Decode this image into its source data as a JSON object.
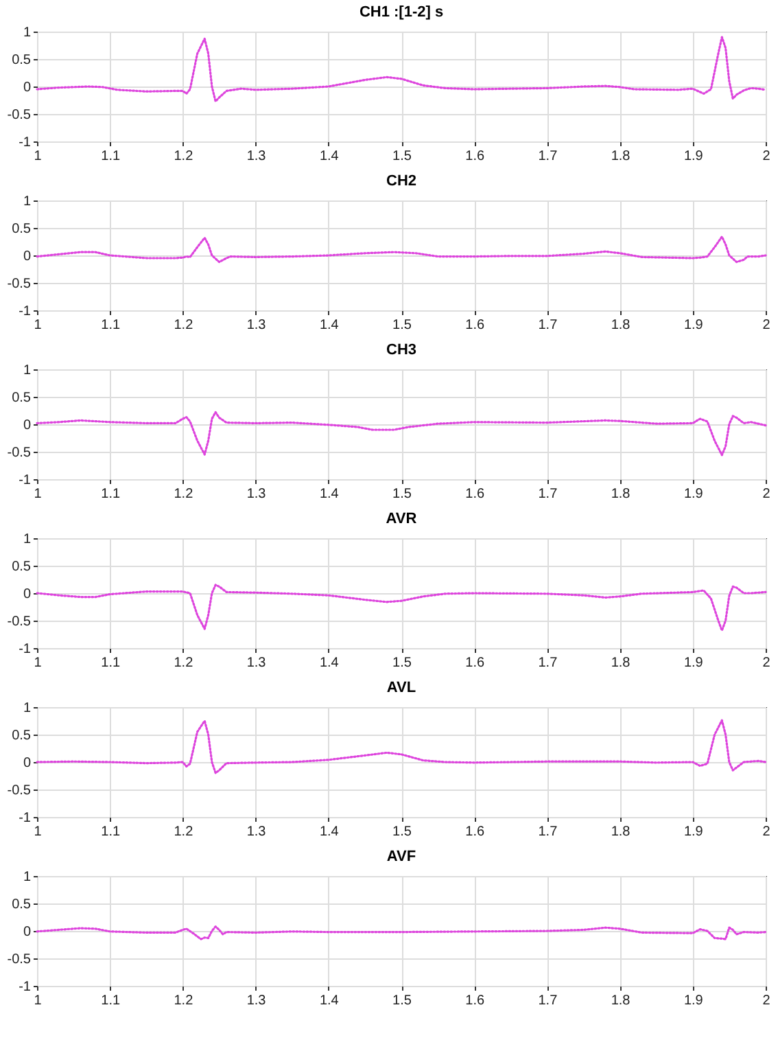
{
  "chart_data": [
    {
      "type": "line",
      "title": "CH1 :[1-2] s",
      "color": "#dd44dd",
      "line_style": "dotted",
      "grid": true,
      "xlim": [
        1,
        2
      ],
      "xticks": [
        1,
        1.1,
        1.2,
        1.3,
        1.4,
        1.5,
        1.6,
        1.7,
        1.8,
        1.9,
        2
      ],
      "ylim": [
        -1,
        1
      ],
      "yticks": [
        -1,
        -0.5,
        0,
        0.5,
        1
      ],
      "x": [
        1,
        1.03,
        1.07,
        1.09,
        1.11,
        1.15,
        1.19,
        1.2,
        1.205,
        1.21,
        1.22,
        1.23,
        1.235,
        1.24,
        1.245,
        1.25,
        1.26,
        1.28,
        1.3,
        1.35,
        1.4,
        1.45,
        1.48,
        1.5,
        1.53,
        1.56,
        1.6,
        1.65,
        1.7,
        1.75,
        1.78,
        1.8,
        1.82,
        1.88,
        1.9,
        1.915,
        1.925,
        1.935,
        1.94,
        1.945,
        1.95,
        1.955,
        1.96,
        1.97,
        1.98,
        1.99,
        2
      ],
      "values": [
        -0.05,
        -0.02,
        0,
        -0.01,
        -0.06,
        -0.09,
        -0.08,
        -0.08,
        -0.13,
        -0.05,
        0.6,
        0.87,
        0.6,
        0,
        -0.27,
        -0.2,
        -0.08,
        -0.04,
        -0.06,
        -0.04,
        0,
        0.12,
        0.17,
        0.14,
        0.02,
        -0.03,
        -0.05,
        -0.04,
        -0.03,
        0,
        0.01,
        -0.01,
        -0.05,
        -0.06,
        -0.04,
        -0.13,
        -0.05,
        0.6,
        0.9,
        0.7,
        0.1,
        -0.22,
        -0.15,
        -0.07,
        -0.03,
        -0.04,
        -0.06
      ]
    },
    {
      "type": "line",
      "title": "CH2",
      "color": "#dd44dd",
      "line_style": "dotted",
      "grid": true,
      "xlim": [
        1,
        2
      ],
      "xticks": [
        1,
        1.1,
        1.2,
        1.3,
        1.4,
        1.5,
        1.6,
        1.7,
        1.8,
        1.9,
        2
      ],
      "ylim": [
        -1,
        1
      ],
      "yticks": [
        -1,
        -0.5,
        0,
        0.5,
        1
      ],
      "x": [
        1,
        1.03,
        1.06,
        1.08,
        1.1,
        1.15,
        1.19,
        1.2,
        1.205,
        1.21,
        1.22,
        1.23,
        1.235,
        1.24,
        1.25,
        1.26,
        1.265,
        1.3,
        1.35,
        1.4,
        1.45,
        1.49,
        1.52,
        1.55,
        1.6,
        1.65,
        1.7,
        1.75,
        1.78,
        1.8,
        1.83,
        1.9,
        1.91,
        1.92,
        1.93,
        1.94,
        1.945,
        1.95,
        1.96,
        1.97,
        1.975,
        1.99,
        2
      ],
      "values": [
        -0.02,
        0.02,
        0.06,
        0.06,
        0,
        -0.05,
        -0.05,
        -0.04,
        -0.02,
        -0.03,
        0.15,
        0.32,
        0.2,
        0,
        -0.12,
        -0.05,
        -0.02,
        -0.03,
        -0.02,
        0,
        0.04,
        0.06,
        0.04,
        -0.02,
        -0.02,
        -0.01,
        -0.01,
        0.03,
        0.07,
        0.04,
        -0.03,
        -0.05,
        -0.04,
        -0.02,
        0.15,
        0.34,
        0.2,
        0,
        -0.12,
        -0.08,
        -0.02,
        -0.02,
        0
      ]
    },
    {
      "type": "line",
      "title": "CH3",
      "color": "#dd44dd",
      "line_style": "dotted",
      "grid": true,
      "xlim": [
        1,
        2
      ],
      "xticks": [
        1,
        1.1,
        1.2,
        1.3,
        1.4,
        1.5,
        1.6,
        1.7,
        1.8,
        1.9,
        2
      ],
      "ylim": [
        -1,
        1
      ],
      "yticks": [
        -1,
        -0.5,
        0,
        0.5,
        1
      ],
      "x": [
        1,
        1.03,
        1.06,
        1.1,
        1.15,
        1.19,
        1.2,
        1.205,
        1.21,
        1.22,
        1.23,
        1.235,
        1.24,
        1.245,
        1.25,
        1.26,
        1.3,
        1.35,
        1.4,
        1.44,
        1.46,
        1.49,
        1.51,
        1.55,
        1.6,
        1.7,
        1.78,
        1.8,
        1.85,
        1.9,
        1.91,
        1.92,
        1.93,
        1.94,
        1.945,
        1.95,
        1.955,
        1.96,
        1.97,
        1.98,
        2
      ],
      "values": [
        0.02,
        0.04,
        0.07,
        0.04,
        0.02,
        0.02,
        0.1,
        0.13,
        0.05,
        -0.3,
        -0.55,
        -0.3,
        0.1,
        0.22,
        0.12,
        0.03,
        0.02,
        0.03,
        -0.01,
        -0.05,
        -0.1,
        -0.1,
        -0.05,
        0.01,
        0.04,
        0.03,
        0.07,
        0.06,
        0.01,
        0.02,
        0.1,
        0.05,
        -0.3,
        -0.56,
        -0.4,
        0,
        0.15,
        0.12,
        0.02,
        0.04,
        -0.02
      ]
    },
    {
      "type": "line",
      "title": "AVR",
      "color": "#dd44dd",
      "line_style": "dotted",
      "grid": true,
      "xlim": [
        1,
        2
      ],
      "xticks": [
        1,
        1.1,
        1.2,
        1.3,
        1.4,
        1.5,
        1.6,
        1.7,
        1.8,
        1.9,
        2
      ],
      "ylim": [
        -1,
        1
      ],
      "yticks": [
        -1,
        -0.5,
        0,
        0.5,
        1
      ],
      "x": [
        1,
        1.03,
        1.06,
        1.08,
        1.1,
        1.15,
        1.2,
        1.21,
        1.22,
        1.23,
        1.235,
        1.24,
        1.245,
        1.25,
        1.26,
        1.3,
        1.35,
        1.4,
        1.45,
        1.48,
        1.5,
        1.53,
        1.56,
        1.6,
        1.7,
        1.75,
        1.78,
        1.8,
        1.83,
        1.9,
        1.915,
        1.925,
        1.935,
        1.94,
        1.945,
        1.95,
        1.955,
        1.96,
        1.97,
        1.98,
        2
      ],
      "values": [
        0,
        -0.04,
        -0.07,
        -0.07,
        -0.02,
        0.03,
        0.03,
        0,
        -0.4,
        -0.65,
        -0.4,
        0,
        0.15,
        0.12,
        0.02,
        0.01,
        -0.01,
        -0.04,
        -0.12,
        -0.16,
        -0.14,
        -0.06,
        -0.01,
        0,
        -0.01,
        -0.04,
        -0.08,
        -0.06,
        -0.01,
        0.02,
        0.05,
        -0.1,
        -0.5,
        -0.68,
        -0.5,
        -0.05,
        0.12,
        0.1,
        0,
        0,
        0.02
      ]
    },
    {
      "type": "line",
      "title": "AVL",
      "color": "#dd44dd",
      "line_style": "dotted",
      "grid": true,
      "xlim": [
        1,
        2
      ],
      "xticks": [
        1,
        1.1,
        1.2,
        1.3,
        1.4,
        1.5,
        1.6,
        1.7,
        1.8,
        1.9,
        2
      ],
      "ylim": [
        -1,
        1
      ],
      "yticks": [
        -1,
        -0.5,
        0,
        0.5,
        1
      ],
      "x": [
        1,
        1.05,
        1.1,
        1.15,
        1.19,
        1.2,
        1.205,
        1.21,
        1.22,
        1.23,
        1.235,
        1.24,
        1.245,
        1.25,
        1.26,
        1.3,
        1.35,
        1.4,
        1.45,
        1.48,
        1.5,
        1.53,
        1.56,
        1.6,
        1.7,
        1.8,
        1.85,
        1.9,
        1.91,
        1.92,
        1.93,
        1.94,
        1.945,
        1.95,
        1.955,
        1.96,
        1.97,
        1.99,
        2
      ],
      "values": [
        0,
        0.01,
        0,
        -0.02,
        -0.01,
        0,
        -0.08,
        -0.03,
        0.55,
        0.75,
        0.5,
        0,
        -0.2,
        -0.15,
        -0.02,
        -0.01,
        0,
        0.04,
        0.12,
        0.17,
        0.14,
        0.03,
        0,
        -0.01,
        0.01,
        0.01,
        -0.01,
        0,
        -0.07,
        -0.03,
        0.5,
        0.76,
        0.5,
        0,
        -0.15,
        -0.1,
        0,
        0.02,
        0
      ]
    },
    {
      "type": "line",
      "title": "AVF",
      "color": "#dd44dd",
      "line_style": "dotted",
      "grid": true,
      "xlim": [
        1,
        2
      ],
      "xticks": [
        1,
        1.1,
        1.2,
        1.3,
        1.4,
        1.5,
        1.6,
        1.7,
        1.8,
        1.9,
        2
      ],
      "ylim": [
        -1,
        1
      ],
      "yticks": [
        -1,
        -0.5,
        0,
        0.5,
        1
      ],
      "x": [
        1,
        1.03,
        1.06,
        1.08,
        1.1,
        1.15,
        1.19,
        1.2,
        1.205,
        1.215,
        1.225,
        1.23,
        1.235,
        1.24,
        1.245,
        1.25,
        1.255,
        1.26,
        1.3,
        1.35,
        1.4,
        1.5,
        1.6,
        1.7,
        1.75,
        1.78,
        1.8,
        1.83,
        1.9,
        1.91,
        1.92,
        1.93,
        1.94,
        1.945,
        1.95,
        1.955,
        1.96,
        1.97,
        1.99,
        2
      ],
      "values": [
        -0.01,
        0.02,
        0.05,
        0.04,
        -0.01,
        -0.03,
        -0.03,
        0.02,
        0.04,
        -0.05,
        -0.15,
        -0.12,
        -0.13,
        0,
        0.08,
        0.02,
        -0.06,
        -0.02,
        -0.03,
        -0.01,
        -0.02,
        -0.02,
        -0.01,
        0,
        0.02,
        0.06,
        0.04,
        -0.03,
        -0.04,
        0.03,
        0,
        -0.13,
        -0.14,
        -0.15,
        0.06,
        0.02,
        -0.06,
        -0.02,
        -0.03,
        -0.02
      ]
    }
  ]
}
